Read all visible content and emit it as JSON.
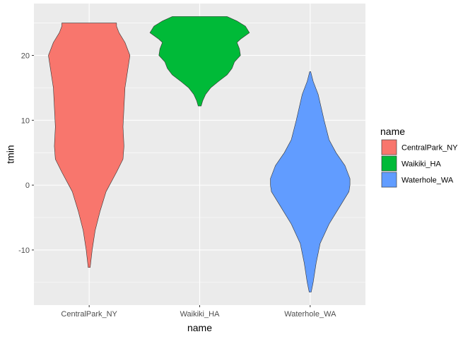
{
  "chart_data": {
    "type": "violin",
    "xlabel": "name",
    "ylabel": "tmin",
    "ylim": [
      -18.5,
      28
    ],
    "yticks": [
      -10,
      0,
      10,
      20
    ],
    "grid": true,
    "legend_position": "right",
    "legend_title": "name",
    "categories": [
      "CentralPark_NY",
      "Waikiki_HA",
      "Waterhole_WA"
    ],
    "series": [
      {
        "name": "CentralPark_NY",
        "color": "#F8766D",
        "min": -12.7,
        "max": 25,
        "density": [
          [
            -12.7,
            0.02
          ],
          [
            -10,
            0.06
          ],
          [
            -7,
            0.12
          ],
          [
            -4,
            0.22
          ],
          [
            -1,
            0.34
          ],
          [
            2,
            0.55
          ],
          [
            4,
            0.68
          ],
          [
            6,
            0.7
          ],
          [
            9,
            0.68
          ],
          [
            12,
            0.7
          ],
          [
            15,
            0.72
          ],
          [
            18,
            0.78
          ],
          [
            20,
            0.82
          ],
          [
            22,
            0.72
          ],
          [
            23.5,
            0.6
          ],
          [
            24.5,
            0.55
          ],
          [
            25,
            0.55
          ]
        ]
      },
      {
        "name": "Waikiki_HA",
        "color": "#00BA38",
        "min": 12.2,
        "max": 26,
        "density": [
          [
            12.2,
            0.03
          ],
          [
            13,
            0.06
          ],
          [
            14,
            0.12
          ],
          [
            15,
            0.22
          ],
          [
            16,
            0.38
          ],
          [
            17,
            0.55
          ],
          [
            18,
            0.65
          ],
          [
            19,
            0.7
          ],
          [
            20,
            0.82
          ],
          [
            21,
            0.8
          ],
          [
            22,
            0.75
          ],
          [
            22.5,
            0.82
          ],
          [
            23.5,
            1.0
          ],
          [
            24.5,
            0.92
          ],
          [
            25.3,
            0.75
          ],
          [
            26,
            0.55
          ]
        ]
      },
      {
        "name": "Waterhole_WA",
        "color": "#619CFF",
        "min": -16.5,
        "max": 17.5,
        "density": [
          [
            -16.5,
            0.02
          ],
          [
            -15,
            0.06
          ],
          [
            -12,
            0.12
          ],
          [
            -9,
            0.2
          ],
          [
            -6,
            0.38
          ],
          [
            -3,
            0.62
          ],
          [
            -1,
            0.78
          ],
          [
            0,
            0.8
          ],
          [
            1,
            0.8
          ],
          [
            3,
            0.7
          ],
          [
            5,
            0.52
          ],
          [
            7,
            0.38
          ],
          [
            10,
            0.28
          ],
          [
            12,
            0.22
          ],
          [
            14,
            0.16
          ],
          [
            16,
            0.06
          ],
          [
            17.5,
            0.01
          ]
        ]
      }
    ]
  }
}
